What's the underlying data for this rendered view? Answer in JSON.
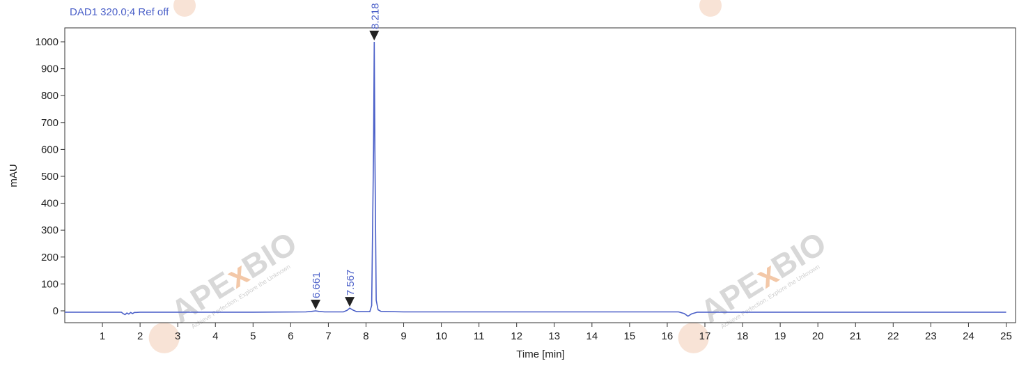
{
  "signal_title": "DAD1 320.0;4 Ref off",
  "colors": {
    "trace": "#4a5fc8",
    "axis": "#333333",
    "watermark_text": "#d8d8d8",
    "watermark_x": "#f3c8a8"
  },
  "watermark": {
    "brand_prefix": "APE",
    "brand_x": "x",
    "brand_suffix": "BIO",
    "tagline": "Achieve Perfection, Explore the Unknown"
  },
  "chart_data": {
    "type": "line",
    "title": "DAD1 320.0;4 Ref off",
    "xlabel": "Time [min]",
    "ylabel": "mAU",
    "xlim": [
      0,
      25.25
    ],
    "ylim": [
      -50,
      1050
    ],
    "x_ticks": [
      1,
      2,
      3,
      4,
      5,
      6,
      7,
      8,
      9,
      10,
      11,
      12,
      13,
      14,
      15,
      16,
      17,
      18,
      19,
      20,
      21,
      22,
      23,
      24,
      25
    ],
    "y_ticks": [
      0,
      100,
      200,
      300,
      400,
      500,
      600,
      700,
      800,
      900,
      1000
    ],
    "grid": false,
    "series": [
      {
        "x": [
          0,
          1.5,
          1.55,
          1.6,
          1.65,
          1.7,
          1.75,
          1.8,
          1.85,
          1.9,
          2.0,
          5.0,
          6.4,
          6.55,
          6.661,
          6.75,
          6.9,
          7.4,
          7.5,
          7.567,
          7.65,
          7.75,
          8.1,
          8.15,
          8.2,
          8.218,
          8.235,
          8.27,
          8.32,
          8.4,
          9.0,
          16.3,
          16.45,
          16.55,
          16.65,
          16.8,
          25.0
        ],
        "y": [
          -5,
          -5,
          -10,
          -14,
          -8,
          -12,
          -6,
          -10,
          -6,
          -6,
          -5,
          -5,
          -4,
          -2,
          0,
          -2,
          -4,
          -4,
          2,
          10,
          3,
          -3,
          -3,
          20,
          600,
          1000,
          600,
          40,
          4,
          -2,
          -4,
          -4,
          -10,
          -20,
          -11,
          -5,
          -5
        ]
      }
    ],
    "peaks": [
      {
        "time": 6.661,
        "label": "6.661",
        "marker": "filled"
      },
      {
        "time": 7.567,
        "label": "7.567",
        "marker": "filled"
      },
      {
        "time": 8.218,
        "label": "8.218",
        "marker": "filled"
      }
    ]
  }
}
